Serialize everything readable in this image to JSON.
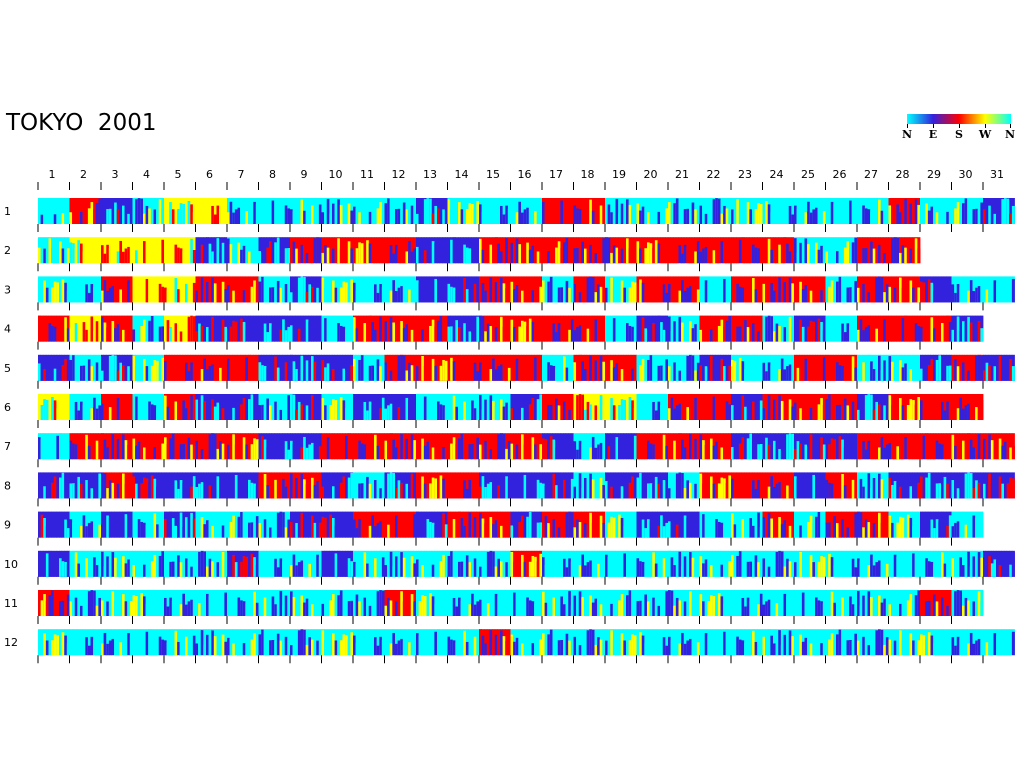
{
  "chart_data": {
    "type": "heatmap",
    "title": "TOKYO  2001",
    "subtitle": "",
    "xlabel": "",
    "ylabel": "",
    "x_tick_labels": [
      "1",
      "2",
      "3",
      "4",
      "5",
      "6",
      "7",
      "8",
      "9",
      "10",
      "11",
      "12",
      "13",
      "14",
      "15",
      "16",
      "17",
      "18",
      "19",
      "20",
      "21",
      "22",
      "23",
      "24",
      "25",
      "26",
      "27",
      "28",
      "29",
      "30",
      "31"
    ],
    "row_labels": [
      "1",
      "2",
      "3",
      "4",
      "5",
      "6",
      "7",
      "8",
      "9",
      "10",
      "11",
      "12"
    ],
    "days_in_month": [
      31,
      28,
      31,
      30,
      31,
      30,
      31,
      31,
      30,
      31,
      30,
      31
    ],
    "legend": {
      "labels": [
        "N",
        "E",
        "S",
        "W",
        "N"
      ],
      "position": "top-right",
      "meaning": "wind direction"
    },
    "colors": {
      "N": "#00ffff",
      "E": "#3322dd",
      "S": "#ff0000",
      "W": "#ffff00",
      "background": "#ffffff"
    },
    "dominant_direction_by_day": [
      [
        "N",
        "S",
        "E",
        "N",
        "W",
        "W",
        "N",
        "N",
        "N",
        "N",
        "N",
        "N",
        "E",
        "N",
        "N",
        "N",
        "S",
        "S",
        "N",
        "N",
        "N",
        "N",
        "N",
        "N",
        "N",
        "N",
        "N",
        "S",
        "N",
        "N",
        "E"
      ],
      [
        "N",
        "W",
        "W",
        "W",
        "W",
        "E",
        "N",
        "E",
        "S",
        "S",
        "S",
        "S",
        "E",
        "E",
        "S",
        "S",
        "S",
        "S",
        "S",
        "S",
        "S",
        "S",
        "S",
        "S",
        "N",
        "N",
        "S",
        "S"
      ],
      [
        "N",
        "N",
        "S",
        "W",
        "W",
        "S",
        "S",
        "N",
        "E",
        "N",
        "N",
        "N",
        "E",
        "E",
        "S",
        "S",
        "N",
        "S",
        "N",
        "S",
        "S",
        "N",
        "S",
        "S",
        "S",
        "N",
        "S",
        "S",
        "E",
        "N",
        "N"
      ],
      [
        "S",
        "W",
        "S",
        "N",
        "W",
        "E",
        "E",
        "E",
        "E",
        "N",
        "S",
        "S",
        "S",
        "E",
        "S",
        "S",
        "S",
        "S",
        "N",
        "E",
        "N",
        "S",
        "S",
        "N",
        "E",
        "N",
        "S",
        "S",
        "S",
        "E"
      ],
      [
        "E",
        "N",
        "E",
        "N",
        "S",
        "S",
        "S",
        "E",
        "E",
        "E",
        "N",
        "S",
        "S",
        "S",
        "S",
        "S",
        "N",
        "S",
        "S",
        "N",
        "N",
        "E",
        "N",
        "N",
        "S",
        "S",
        "N",
        "N",
        "E",
        "S",
        "E"
      ],
      [
        "W",
        "N",
        "S",
        "N",
        "S",
        "E",
        "E",
        "N",
        "E",
        "N",
        "E",
        "E",
        "N",
        "N",
        "N",
        "E",
        "S",
        "W",
        "W",
        "N",
        "S",
        "S",
        "E",
        "S",
        "S",
        "S",
        "E",
        "S",
        "S",
        "S"
      ],
      [
        "N",
        "S",
        "S",
        "S",
        "S",
        "S",
        "S",
        "E",
        "E",
        "S",
        "S",
        "S",
        "S",
        "S",
        "S",
        "S",
        "E",
        "N",
        "E",
        "S",
        "S",
        "S",
        "E",
        "E",
        "E",
        "E",
        "S",
        "S",
        "S",
        "S",
        "S"
      ],
      [
        "E",
        "E",
        "S",
        "E",
        "E",
        "E",
        "E",
        "S",
        "S",
        "E",
        "N",
        "E",
        "S",
        "S",
        "E",
        "E",
        "E",
        "N",
        "E",
        "E",
        "N",
        "S",
        "S",
        "S",
        "E",
        "S",
        "N",
        "E",
        "E",
        "E",
        "E"
      ],
      [
        "E",
        "N",
        "E",
        "N",
        "E",
        "N",
        "N",
        "N",
        "E",
        "E",
        "S",
        "S",
        "E",
        "S",
        "S",
        "E",
        "S",
        "S",
        "N",
        "E",
        "E",
        "N",
        "N",
        "S",
        "N",
        "S",
        "S",
        "N",
        "E",
        "N"
      ],
      [
        "E",
        "N",
        "N",
        "N",
        "N",
        "N",
        "E",
        "N",
        "N",
        "E",
        "N",
        "N",
        "N",
        "N",
        "N",
        "S",
        "N",
        "N",
        "N",
        "N",
        "N",
        "N",
        "N",
        "N",
        "N",
        "N",
        "N",
        "N",
        "N",
        "N",
        "E"
      ],
      [
        "S",
        "N",
        "N",
        "N",
        "N",
        "N",
        "N",
        "N",
        "N",
        "N",
        "N",
        "S",
        "N",
        "N",
        "N",
        "N",
        "N",
        "N",
        "N",
        "N",
        "N",
        "N",
        "N",
        "N",
        "N",
        "N",
        "N",
        "N",
        "S",
        "N"
      ],
      [
        "N",
        "N",
        "N",
        "N",
        "N",
        "N",
        "N",
        "N",
        "N",
        "N",
        "N",
        "N",
        "N",
        "N",
        "S",
        "N",
        "N",
        "N",
        "N",
        "N",
        "N",
        "N",
        "N",
        "N",
        "N",
        "N",
        "N",
        "N",
        "N",
        "N",
        "N"
      ]
    ]
  }
}
